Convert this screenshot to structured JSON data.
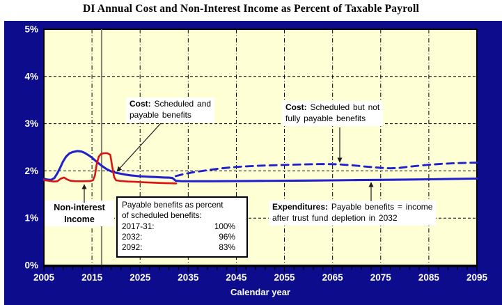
{
  "title": "DI Annual Cost and Non-Interest Income as Percent of Taxable Payroll",
  "colors": {
    "frame_navy": "#0C0C8C",
    "plot_bg": "#FFFFD6",
    "cost_blue": "#2222CC",
    "income_red": "#DD1111",
    "grid": "#000000",
    "historical_line_gray": "#7F7F70",
    "axis_text": "#FFFFFF",
    "annotation_text": "#000000"
  },
  "chart_data": {
    "type": "line",
    "title": "DI Annual Cost and Non-Interest Income as Percent of Taxable Payroll",
    "xlabel": "Calendar year",
    "ylabel": "Percent of taxable payroll",
    "x_range": [
      2005,
      2095
    ],
    "y_range": [
      0,
      5
    ],
    "grid": true,
    "legend_position": "annotated-labels",
    "x_ticks": [
      {
        "value": 2005,
        "label": "2005"
      },
      {
        "value": 2015,
        "label": "2015"
      },
      {
        "value": 2025,
        "label": "2025"
      },
      {
        "value": 2035,
        "label": "2035"
      },
      {
        "value": 2045,
        "label": "2045"
      },
      {
        "value": 2055,
        "label": "2055"
      },
      {
        "value": 2065,
        "label": "2065"
      },
      {
        "value": 2075,
        "label": "2075"
      },
      {
        "value": 2085,
        "label": "2085"
      },
      {
        "value": 2095,
        "label": "2095"
      }
    ],
    "y_ticks": [
      {
        "value": 0,
        "label": "0%"
      },
      {
        "value": 1,
        "label": "1%"
      },
      {
        "value": 2,
        "label": "2%"
      },
      {
        "value": 3,
        "label": "3%"
      },
      {
        "value": 4,
        "label": "4%"
      },
      {
        "value": 5,
        "label": "5%"
      }
    ],
    "x_gridlines": [
      2015,
      2025,
      2035,
      2045,
      2055,
      2065,
      2075,
      2085
    ],
    "y_gridlines": [
      1,
      2,
      3,
      4
    ],
    "minor_tick_step": 2,
    "historical_boundary_year": 2017,
    "series": [
      {
        "name": "Cost: Scheduled and payable benefits (payable expenditures; = income after trust fund depletion in 2032)",
        "style": "solid",
        "color": "#2222CC",
        "width": 3.1,
        "points": [
          [
            2005,
            1.83
          ],
          [
            2005.8,
            1.815
          ],
          [
            2006.5,
            1.81
          ],
          [
            2007.2,
            1.85
          ],
          [
            2007.8,
            1.95
          ],
          [
            2008.4,
            2.07
          ],
          [
            2009,
            2.2
          ],
          [
            2009.6,
            2.3
          ],
          [
            2010.3,
            2.37
          ],
          [
            2011,
            2.4
          ],
          [
            2012,
            2.42
          ],
          [
            2012.8,
            2.41
          ],
          [
            2013.5,
            2.38
          ],
          [
            2014.3,
            2.33
          ],
          [
            2015,
            2.28
          ],
          [
            2016,
            2.19
          ],
          [
            2017,
            2.11
          ],
          [
            2018,
            2.04
          ],
          [
            2019,
            1.99
          ],
          [
            2020,
            1.96
          ],
          [
            2021,
            1.94
          ],
          [
            2022,
            1.92
          ],
          [
            2023,
            1.905
          ],
          [
            2024,
            1.895
          ],
          [
            2025,
            1.885
          ],
          [
            2026,
            1.88
          ],
          [
            2027,
            1.875
          ],
          [
            2028,
            1.87
          ],
          [
            2029,
            1.865
          ],
          [
            2030,
            1.86
          ],
          [
            2031,
            1.857
          ],
          [
            2031.7,
            1.85
          ],
          [
            2032.4,
            1.79
          ],
          [
            2033.5,
            1.782
          ],
          [
            2036,
            1.78
          ],
          [
            2040,
            1.78
          ],
          [
            2045,
            1.783
          ],
          [
            2050,
            1.787
          ],
          [
            2055,
            1.79
          ],
          [
            2060,
            1.795
          ],
          [
            2065,
            1.8
          ],
          [
            2070,
            1.805
          ],
          [
            2075,
            1.81
          ],
          [
            2080,
            1.815
          ],
          [
            2085,
            1.822
          ],
          [
            2090,
            1.83
          ],
          [
            2095,
            1.838
          ]
        ]
      },
      {
        "name": "Cost: Scheduled but not fully payable benefits",
        "style": "dashed",
        "color": "#2222CC",
        "width": 2.9,
        "points": [
          [
            2032.4,
            1.89
          ],
          [
            2034,
            1.93
          ],
          [
            2036,
            1.97
          ],
          [
            2038,
            2.0
          ],
          [
            2040,
            2.03
          ],
          [
            2042,
            2.055
          ],
          [
            2044,
            2.075
          ],
          [
            2046,
            2.09
          ],
          [
            2048,
            2.1
          ],
          [
            2050,
            2.11
          ],
          [
            2053,
            2.12
          ],
          [
            2056,
            2.13
          ],
          [
            2060,
            2.14
          ],
          [
            2063,
            2.145
          ],
          [
            2066,
            2.14
          ],
          [
            2069,
            2.12
          ],
          [
            2072,
            2.09
          ],
          [
            2075,
            2.065
          ],
          [
            2077,
            2.055
          ],
          [
            2079,
            2.065
          ],
          [
            2081,
            2.09
          ],
          [
            2083,
            2.11
          ],
          [
            2085,
            2.13
          ],
          [
            2088,
            2.15
          ],
          [
            2091,
            2.165
          ],
          [
            2095,
            2.175
          ]
        ]
      },
      {
        "name": "Non-interest Income",
        "style": "solid",
        "color": "#DD1111",
        "width": 2.6,
        "points": [
          [
            2005,
            1.805
          ],
          [
            2006,
            1.79
          ],
          [
            2007,
            1.775
          ],
          [
            2007.8,
            1.78
          ],
          [
            2008.5,
            1.835
          ],
          [
            2009.2,
            1.86
          ],
          [
            2009.8,
            1.82
          ],
          [
            2010.5,
            1.79
          ],
          [
            2011.5,
            1.782
          ],
          [
            2013,
            1.78
          ],
          [
            2014.5,
            1.783
          ],
          [
            2015.2,
            1.8
          ],
          [
            2015.6,
            1.9
          ],
          [
            2016,
            2.15
          ],
          [
            2016.4,
            2.3
          ],
          [
            2016.9,
            2.36
          ],
          [
            2017.5,
            2.375
          ],
          [
            2018.2,
            2.375
          ],
          [
            2018.8,
            2.34
          ],
          [
            2019.2,
            2.1
          ],
          [
            2019.6,
            1.87
          ],
          [
            2020,
            1.8
          ],
          [
            2021,
            1.785
          ],
          [
            2022.5,
            1.775
          ],
          [
            2024,
            1.768
          ],
          [
            2026,
            1.758
          ],
          [
            2028,
            1.75
          ],
          [
            2030,
            1.742
          ],
          [
            2031.5,
            1.737
          ],
          [
            2032.5,
            1.735
          ]
        ]
      }
    ]
  },
  "annotations": {
    "cost_payable": {
      "bold": "Cost:",
      "rest": " Scheduled and\npayable benefits"
    },
    "cost_scheduled": {
      "bold": "Cost:",
      "rest": " Scheduled but not\nfully payable benefits"
    },
    "non_interest": {
      "text": "Non-interest\nIncome"
    },
    "expenditures": {
      "bold": "Expenditures:",
      "rest": " Payable benefits = income\nafter trust fund depletion in 2032"
    },
    "payable_box": {
      "header": "Payable benefits as percent\nof scheduled benefits:",
      "rows": [
        {
          "label": "2017-31:",
          "value": "100%"
        },
        {
          "label": "2032:",
          "value": "96%"
        },
        {
          "label": "2092:",
          "value": "83%"
        }
      ]
    }
  }
}
